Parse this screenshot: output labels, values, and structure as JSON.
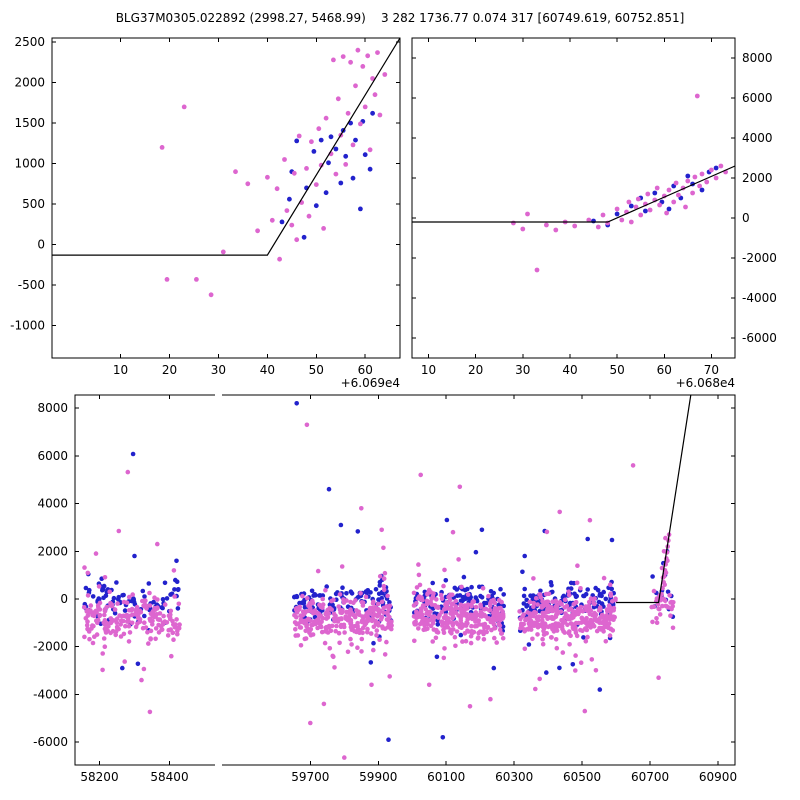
{
  "title": "BLG37M0305.022892 (2998.27, 5468.99)    3 282 1736.77 0.074 317 [60749.619, 60752.851]",
  "colors": {
    "magenta": "#DD66CF",
    "blue": "#2222CC",
    "line": "#000000",
    "axis": "#000000"
  },
  "chart_data": [
    {
      "id": "top_left",
      "type": "scatter",
      "xlim": [
        -4,
        67.1
      ],
      "ylim": [
        -1400,
        2550
      ],
      "xticks": [
        10,
        20,
        30,
        40,
        50,
        60
      ],
      "yticks": [
        -1000,
        -500,
        0,
        500,
        1000,
        1500,
        2000,
        2500
      ],
      "ytick_side": "left",
      "x_offset_label": "+6.069e4",
      "line": [
        [
          -4,
          -130
        ],
        [
          40,
          -130
        ],
        [
          67.1,
          2550
        ]
      ],
      "series": [
        {
          "name": "blue-points",
          "color": "blue",
          "points": [
            [
              43,
              280
            ],
            [
              44.5,
              560
            ],
            [
              45,
              900
            ],
            [
              46,
              1280
            ],
            [
              47.5,
              90
            ],
            [
              48,
              700
            ],
            [
              49.5,
              1150
            ],
            [
              50,
              480
            ],
            [
              51,
              1290
            ],
            [
              52,
              640
            ],
            [
              52.5,
              1010
            ],
            [
              53,
              1330
            ],
            [
              54,
              1180
            ],
            [
              55,
              760
            ],
            [
              55.5,
              1410
            ],
            [
              56,
              1090
            ],
            [
              57,
              1500
            ],
            [
              57.5,
              820
            ],
            [
              58,
              1290
            ],
            [
              59,
              440
            ],
            [
              59.5,
              1520
            ],
            [
              60,
              1110
            ],
            [
              61,
              930
            ],
            [
              61.5,
              1620
            ]
          ]
        },
        {
          "name": "magenta-points",
          "color": "magenta",
          "points": [
            [
              18.5,
              1200
            ],
            [
              23,
              1700
            ],
            [
              19.5,
              -430
            ],
            [
              25.5,
              -430
            ],
            [
              28.5,
              -620
            ],
            [
              31,
              -90
            ],
            [
              33.5,
              900
            ],
            [
              36,
              750
            ],
            [
              38,
              170
            ],
            [
              40,
              830
            ],
            [
              41,
              300
            ],
            [
              42,
              690
            ],
            [
              42.5,
              -180
            ],
            [
              43.5,
              1050
            ],
            [
              44,
              420
            ],
            [
              45,
              240
            ],
            [
              45.5,
              880
            ],
            [
              46,
              60
            ],
            [
              46.5,
              1340
            ],
            [
              47,
              520
            ],
            [
              48,
              940
            ],
            [
              48.5,
              350
            ],
            [
              49,
              1270
            ],
            [
              50,
              740
            ],
            [
              50.5,
              1430
            ],
            [
              51,
              980
            ],
            [
              51.5,
              200
            ],
            [
              52,
              1560
            ],
            [
              53,
              1120
            ],
            [
              53.5,
              2280
            ],
            [
              54,
              870
            ],
            [
              54.5,
              1800
            ],
            [
              55,
              1350
            ],
            [
              55.5,
              2320
            ],
            [
              56,
              990
            ],
            [
              56.5,
              1620
            ],
            [
              57,
              2250
            ],
            [
              57.5,
              1230
            ],
            [
              58,
              1960
            ],
            [
              58.5,
              2400
            ],
            [
              59,
              1490
            ],
            [
              59.5,
              2200
            ],
            [
              60,
              1700
            ],
            [
              60.5,
              2330
            ],
            [
              61,
              1170
            ],
            [
              61.5,
              2050
            ],
            [
              62,
              1850
            ],
            [
              62.5,
              2370
            ],
            [
              63,
              1600
            ],
            [
              64,
              2100
            ]
          ]
        }
      ]
    },
    {
      "id": "top_right",
      "type": "scatter",
      "xlim": [
        6.5,
        75
      ],
      "ylim": [
        -7000,
        9000
      ],
      "xticks": [
        10,
        20,
        30,
        40,
        50,
        60,
        70
      ],
      "yticks": [
        -6000,
        -4000,
        -2000,
        0,
        2000,
        4000,
        6000,
        8000
      ],
      "ytick_side": "right",
      "x_offset_label": "+6.068e4",
      "line": [
        [
          6.5,
          -200
        ],
        [
          48,
          -200
        ],
        [
          75,
          2600
        ]
      ],
      "series": [
        {
          "name": "blue-points",
          "color": "blue",
          "points": [
            [
              45,
              -150
            ],
            [
              48,
              -350
            ],
            [
              50,
              200
            ],
            [
              53,
              600
            ],
            [
              55,
              1000
            ],
            [
              56,
              350
            ],
            [
              58,
              1250
            ],
            [
              59.5,
              800
            ],
            [
              61,
              450
            ],
            [
              62,
              1600
            ],
            [
              63.5,
              1000
            ],
            [
              65,
              2100
            ],
            [
              66,
              1700
            ],
            [
              68,
              1400
            ],
            [
              69.5,
              2300
            ],
            [
              71,
              2500
            ]
          ]
        },
        {
          "name": "magenta-points",
          "color": "magenta",
          "points": [
            [
              28,
              -250
            ],
            [
              30,
              -550
            ],
            [
              31,
              200
            ],
            [
              33,
              -2600
            ],
            [
              35,
              -350
            ],
            [
              37,
              -600
            ],
            [
              39,
              -200
            ],
            [
              41,
              -400
            ],
            [
              44,
              -100
            ],
            [
              46,
              -450
            ],
            [
              47,
              150
            ],
            [
              48,
              -250
            ],
            [
              50,
              450
            ],
            [
              51,
              -100
            ],
            [
              52,
              300
            ],
            [
              52.5,
              800
            ],
            [
              53,
              -200
            ],
            [
              54,
              550
            ],
            [
              54.5,
              950
            ],
            [
              55,
              150
            ],
            [
              56,
              700
            ],
            [
              56.5,
              1200
            ],
            [
              57,
              400
            ],
            [
              58,
              900
            ],
            [
              58.5,
              1500
            ],
            [
              59,
              650
            ],
            [
              60,
              1100
            ],
            [
              60.5,
              250
            ],
            [
              61,
              1400
            ],
            [
              62,
              800
            ],
            [
              62.5,
              1750
            ],
            [
              63,
              1150
            ],
            [
              64,
              1500
            ],
            [
              64.5,
              550
            ],
            [
              65,
              1850
            ],
            [
              66,
              1250
            ],
            [
              66.5,
              2050
            ],
            [
              67,
              6100
            ],
            [
              67.5,
              1600
            ],
            [
              68,
              2200
            ],
            [
              69,
              1800
            ],
            [
              70,
              2400
            ],
            [
              71,
              2000
            ],
            [
              72,
              2600
            ],
            [
              73,
              2300
            ]
          ]
        }
      ]
    },
    {
      "id": "bottom",
      "type": "scatter-broken-x",
      "ylim": [
        -6960,
        8550
      ],
      "yticks": [
        -6000,
        -4000,
        -2000,
        0,
        2000,
        4000,
        6000,
        8000
      ],
      "ytick_side": "left",
      "panels": [
        {
          "xlim": [
            58130,
            58530
          ],
          "xticks": [
            58200,
            58400
          ]
        },
        {
          "xlim": [
            59440,
            60950
          ],
          "xticks": [
            59700,
            59900,
            60100,
            60300,
            60500,
            60700,
            60900
          ]
        }
      ],
      "line": [
        [
          60600,
          -150
        ],
        [
          60725,
          -150
        ],
        [
          60820,
          8550
        ]
      ],
      "clusters": [
        {
          "x_range": [
            58155,
            58430
          ],
          "n_magenta": 210,
          "n_blue": 90,
          "magenta": {
            "mean": -800,
            "std": 430
          },
          "blue": {
            "mean": -150,
            "std": 380
          },
          "tail_frac": 0.12,
          "tail_std": 1400
        },
        {
          "x_range": [
            59650,
            59940
          ],
          "n_magenta": 290,
          "n_blue": 120,
          "magenta": {
            "mean": -800,
            "std": 430
          },
          "blue": {
            "mean": -150,
            "std": 380
          },
          "tail_frac": 0.12,
          "tail_std": 1400
        },
        {
          "x_range": [
            60005,
            60270
          ],
          "n_magenta": 300,
          "n_blue": 125,
          "magenta": {
            "mean": -800,
            "std": 430
          },
          "blue": {
            "mean": -150,
            "std": 380
          },
          "tail_frac": 0.12,
          "tail_std": 1400
        },
        {
          "x_range": [
            60315,
            60600
          ],
          "n_magenta": 320,
          "n_blue": 135,
          "magenta": {
            "mean": -800,
            "std": 430
          },
          "blue": {
            "mean": -150,
            "std": 380
          },
          "tail_frac": 0.12,
          "tail_std": 1400
        },
        {
          "x_range": [
            60700,
            60770
          ],
          "n_magenta": 28,
          "n_blue": 10,
          "magenta": {
            "mean": -350,
            "std": 420
          },
          "blue": {
            "mean": -200,
            "std": 400
          },
          "tail_frac": 0.1,
          "tail_std": 800
        }
      ],
      "extra_points": [
        {
          "name": "outliers-blue",
          "color": "blue",
          "points": [
            [
              58296,
              6075
            ],
            [
              58265,
              -2900
            ],
            [
              58420,
              1600
            ],
            [
              58300,
              1800
            ],
            [
              59660,
              8200
            ],
            [
              59755,
              4600
            ],
            [
              59790,
              3100
            ],
            [
              59930,
              -5900
            ],
            [
              60102,
              3310
            ],
            [
              60090,
              -5800
            ],
            [
              60205,
              2900
            ],
            [
              60240,
              -2900
            ],
            [
              60390,
              2850
            ],
            [
              60588,
              2470
            ],
            [
              60552,
              -3800
            ],
            [
              60331,
              1800
            ]
          ]
        },
        {
          "name": "event-rise-blue",
          "color": "blue",
          "points": [
            [
              60735,
              350
            ],
            [
              60744,
              1000
            ],
            [
              60750,
              2000
            ],
            [
              60739,
              1500
            ]
          ]
        },
        {
          "name": "outliers-magenta",
          "color": "magenta",
          "points": [
            [
              58281,
              5320
            ],
            [
              58255,
              2850
            ],
            [
              58365,
              2300
            ],
            [
              58190,
              1900
            ],
            [
              58344,
              -4735
            ],
            [
              58320,
              -3400
            ],
            [
              58405,
              -2400
            ],
            [
              59690,
              7300
            ],
            [
              59850,
              3800
            ],
            [
              59800,
              -6650
            ],
            [
              59700,
              -5200
            ],
            [
              59740,
              -4400
            ],
            [
              59880,
              -3600
            ],
            [
              59910,
              2900
            ],
            [
              60025,
              5200
            ],
            [
              60140,
              4700
            ],
            [
              60170,
              -4500
            ],
            [
              60230,
              -4200
            ],
            [
              60050,
              -3600
            ],
            [
              60434,
              3650
            ],
            [
              60523,
              3300
            ],
            [
              60508,
              -4700
            ],
            [
              60375,
              -3350
            ],
            [
              60480,
              -3000
            ],
            [
              60650,
              5600
            ],
            [
              60725,
              -3300
            ],
            [
              60120,
              2800
            ]
          ]
        },
        {
          "name": "event-rise-magenta",
          "color": "magenta",
          "points": [
            [
              60731,
              -50
            ],
            [
              60734,
              200
            ],
            [
              60737,
              450
            ],
            [
              60740,
              700
            ],
            [
              60742,
              950
            ],
            [
              60744,
              1200
            ],
            [
              60746,
              1450
            ],
            [
              60748,
              1700
            ],
            [
              60750,
              1950
            ],
            [
              60752,
              2200
            ],
            [
              60754,
              2450
            ],
            [
              60756,
              2700
            ],
            [
              60747,
              1100
            ],
            [
              60743,
              600
            ],
            [
              60751,
              1600
            ],
            [
              60738,
              900
            ],
            [
              60735,
              1300
            ],
            [
              60741,
              2000
            ],
            [
              60745,
              2550
            ],
            [
              60736,
              -300
            ],
            [
              60729,
              150
            ]
          ]
        }
      ]
    }
  ]
}
